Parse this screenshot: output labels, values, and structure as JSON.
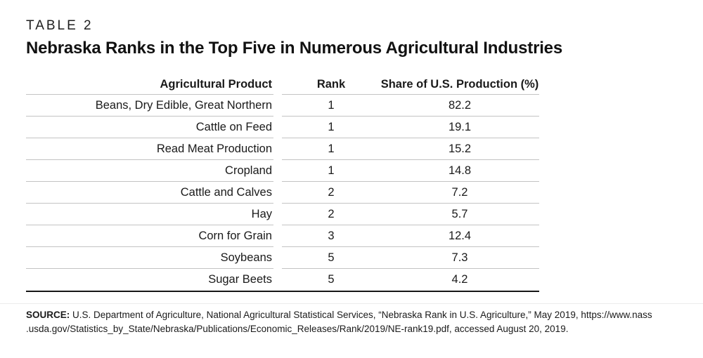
{
  "page": {
    "eyebrow": "TABLE 2",
    "title": "Nebraska Ranks in the Top Five in Numerous Agricultural Industries"
  },
  "table": {
    "columns": [
      "Agricultural Product",
      "Rank",
      "Share of U.S. Production (%)"
    ],
    "rows": [
      {
        "product": "Beans, Dry Edible, Great Northern",
        "rank": "1",
        "share": "82.2"
      },
      {
        "product": "Cattle on Feed",
        "rank": "1",
        "share": "19.1"
      },
      {
        "product": "Read Meat Production",
        "rank": "1",
        "share": "15.2"
      },
      {
        "product": "Cropland",
        "rank": "1",
        "share": "14.8"
      },
      {
        "product": "Cattle and Calves",
        "rank": "2",
        "share": "7.2"
      },
      {
        "product": "Hay",
        "rank": "2",
        "share": "5.7"
      },
      {
        "product": "Corn for Grain",
        "rank": "3",
        "share": "12.4"
      },
      {
        "product": "Soybeans",
        "rank": "5",
        "share": "7.3"
      },
      {
        "product": "Sugar Beets",
        "rank": "5",
        "share": "4.2"
      }
    ]
  },
  "chart_data": {
    "type": "table",
    "title": "Nebraska Ranks in the Top Five in Numerous Agricultural Industries",
    "categories": [
      "Beans, Dry Edible, Great Northern",
      "Cattle on Feed",
      "Read Meat Production",
      "Cropland",
      "Cattle and Calves",
      "Hay",
      "Corn for Grain",
      "Soybeans",
      "Sugar Beets"
    ],
    "series": [
      {
        "name": "Rank",
        "values": [
          1,
          1,
          1,
          1,
          2,
          2,
          3,
          5,
          5
        ]
      },
      {
        "name": "Share of U.S. Production (%)",
        "values": [
          82.2,
          19.1,
          15.2,
          14.8,
          7.2,
          5.7,
          12.4,
          7.3,
          4.2
        ]
      }
    ]
  },
  "source": {
    "label": "SOURCE:",
    "line1": "U.S. Department of Agriculture, National Agricultural Statistical Services, “Nebraska Rank in U.S. Agriculture,” May 2019, https://www.nass",
    "line2": ".usda.gov/Statistics_by_State/Nebraska/Publications/Economic_Releases/Rank/2019/NE-rank19.pdf, accessed August 20, 2019."
  },
  "colors": {
    "text": "#1a1a1a",
    "row_separator": "#c3c3c3",
    "table_bottom_border": "#161616"
  }
}
